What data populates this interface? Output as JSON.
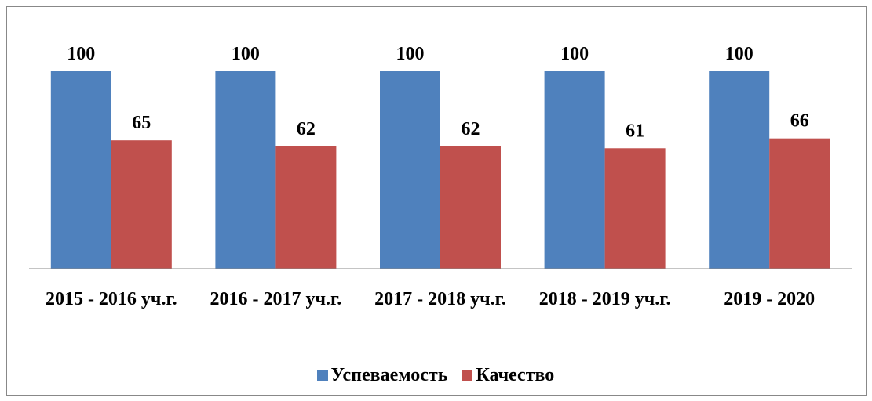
{
  "chart_data": {
    "type": "bar",
    "categories": [
      "2015 - 2016 уч.г.",
      "2016 - 2017 уч.г.",
      "2017 - 2018 уч.г.",
      "2018 - 2019 уч.г.",
      "2019 - 2020"
    ],
    "series": [
      {
        "name": "Успеваемость",
        "color": "#4f81bd",
        "values": [
          100,
          100,
          100,
          100,
          100
        ]
      },
      {
        "name": "Качество",
        "color": "#c0504d",
        "values": [
          65,
          62,
          62,
          61,
          66
        ]
      }
    ],
    "ylim": [
      0,
      100
    ],
    "legend": "bottom"
  }
}
